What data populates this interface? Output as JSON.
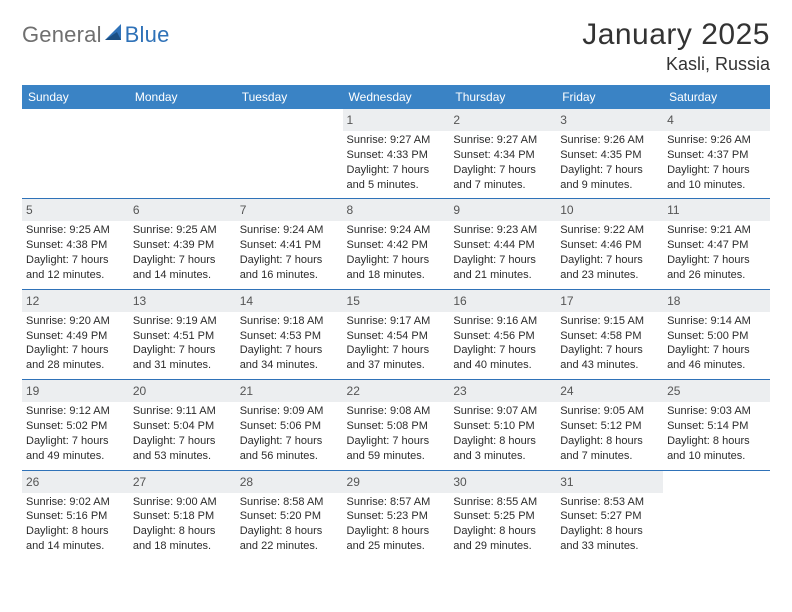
{
  "brand": {
    "part1": "General",
    "part2": "Blue",
    "accent_color": "#2f72b8",
    "gray_color": "#6f6f6f"
  },
  "title": "January 2025",
  "location": "Kasli, Russia",
  "header_bg": "#3a83c5",
  "border_color": "#2f72b8",
  "daybar_bg": "#eceef0",
  "background_color": "#ffffff",
  "text_color": "#2b2b2b",
  "font_family": "Arial, Helvetica, sans-serif",
  "title_fontsize": 30,
  "location_fontsize": 18,
  "header_fontsize": 12,
  "cell_fontsize": 11,
  "daynum_fontsize": 12,
  "weekdays": [
    "Sunday",
    "Monday",
    "Tuesday",
    "Wednesday",
    "Thursday",
    "Friday",
    "Saturday"
  ],
  "weeks": [
    [
      null,
      null,
      null,
      {
        "n": "1",
        "sr": "9:27 AM",
        "ss": "4:33 PM",
        "dl": "7 hours and 5 minutes."
      },
      {
        "n": "2",
        "sr": "9:27 AM",
        "ss": "4:34 PM",
        "dl": "7 hours and 7 minutes."
      },
      {
        "n": "3",
        "sr": "9:26 AM",
        "ss": "4:35 PM",
        "dl": "7 hours and 9 minutes."
      },
      {
        "n": "4",
        "sr": "9:26 AM",
        "ss": "4:37 PM",
        "dl": "7 hours and 10 minutes."
      }
    ],
    [
      {
        "n": "5",
        "sr": "9:25 AM",
        "ss": "4:38 PM",
        "dl": "7 hours and 12 minutes."
      },
      {
        "n": "6",
        "sr": "9:25 AM",
        "ss": "4:39 PM",
        "dl": "7 hours and 14 minutes."
      },
      {
        "n": "7",
        "sr": "9:24 AM",
        "ss": "4:41 PM",
        "dl": "7 hours and 16 minutes."
      },
      {
        "n": "8",
        "sr": "9:24 AM",
        "ss": "4:42 PM",
        "dl": "7 hours and 18 minutes."
      },
      {
        "n": "9",
        "sr": "9:23 AM",
        "ss": "4:44 PM",
        "dl": "7 hours and 21 minutes."
      },
      {
        "n": "10",
        "sr": "9:22 AM",
        "ss": "4:46 PM",
        "dl": "7 hours and 23 minutes."
      },
      {
        "n": "11",
        "sr": "9:21 AM",
        "ss": "4:47 PM",
        "dl": "7 hours and 26 minutes."
      }
    ],
    [
      {
        "n": "12",
        "sr": "9:20 AM",
        "ss": "4:49 PM",
        "dl": "7 hours and 28 minutes."
      },
      {
        "n": "13",
        "sr": "9:19 AM",
        "ss": "4:51 PM",
        "dl": "7 hours and 31 minutes."
      },
      {
        "n": "14",
        "sr": "9:18 AM",
        "ss": "4:53 PM",
        "dl": "7 hours and 34 minutes."
      },
      {
        "n": "15",
        "sr": "9:17 AM",
        "ss": "4:54 PM",
        "dl": "7 hours and 37 minutes."
      },
      {
        "n": "16",
        "sr": "9:16 AM",
        "ss": "4:56 PM",
        "dl": "7 hours and 40 minutes."
      },
      {
        "n": "17",
        "sr": "9:15 AM",
        "ss": "4:58 PM",
        "dl": "7 hours and 43 minutes."
      },
      {
        "n": "18",
        "sr": "9:14 AM",
        "ss": "5:00 PM",
        "dl": "7 hours and 46 minutes."
      }
    ],
    [
      {
        "n": "19",
        "sr": "9:12 AM",
        "ss": "5:02 PM",
        "dl": "7 hours and 49 minutes."
      },
      {
        "n": "20",
        "sr": "9:11 AM",
        "ss": "5:04 PM",
        "dl": "7 hours and 53 minutes."
      },
      {
        "n": "21",
        "sr": "9:09 AM",
        "ss": "5:06 PM",
        "dl": "7 hours and 56 minutes."
      },
      {
        "n": "22",
        "sr": "9:08 AM",
        "ss": "5:08 PM",
        "dl": "7 hours and 59 minutes."
      },
      {
        "n": "23",
        "sr": "9:07 AM",
        "ss": "5:10 PM",
        "dl": "8 hours and 3 minutes."
      },
      {
        "n": "24",
        "sr": "9:05 AM",
        "ss": "5:12 PM",
        "dl": "8 hours and 7 minutes."
      },
      {
        "n": "25",
        "sr": "9:03 AM",
        "ss": "5:14 PM",
        "dl": "8 hours and 10 minutes."
      }
    ],
    [
      {
        "n": "26",
        "sr": "9:02 AM",
        "ss": "5:16 PM",
        "dl": "8 hours and 14 minutes."
      },
      {
        "n": "27",
        "sr": "9:00 AM",
        "ss": "5:18 PM",
        "dl": "8 hours and 18 minutes."
      },
      {
        "n": "28",
        "sr": "8:58 AM",
        "ss": "5:20 PM",
        "dl": "8 hours and 22 minutes."
      },
      {
        "n": "29",
        "sr": "8:57 AM",
        "ss": "5:23 PM",
        "dl": "8 hours and 25 minutes."
      },
      {
        "n": "30",
        "sr": "8:55 AM",
        "ss": "5:25 PM",
        "dl": "8 hours and 29 minutes."
      },
      {
        "n": "31",
        "sr": "8:53 AM",
        "ss": "5:27 PM",
        "dl": "8 hours and 33 minutes."
      },
      null
    ]
  ],
  "labels": {
    "sunrise": "Sunrise:",
    "sunset": "Sunset:",
    "daylight": "Daylight:"
  }
}
